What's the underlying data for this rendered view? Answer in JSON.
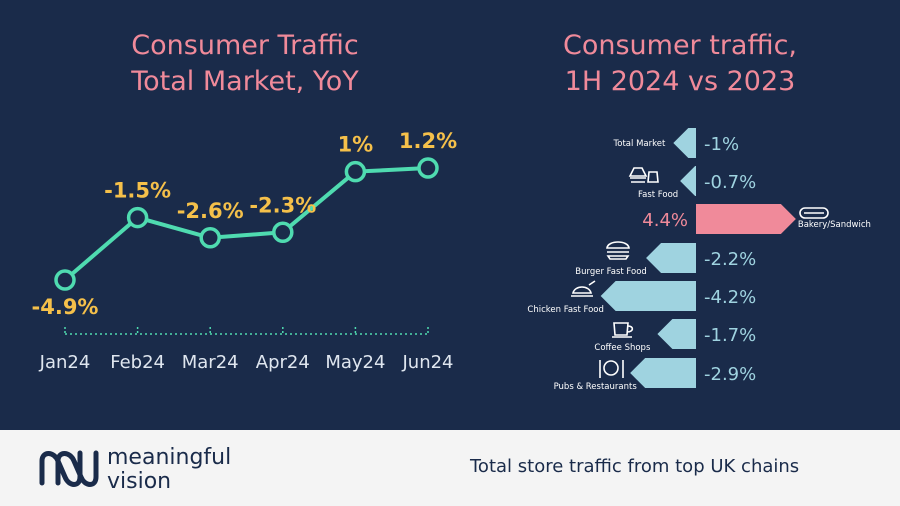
{
  "left_title_line1": "Consumer Traffic",
  "left_title_line2": "Total Market, YoY",
  "right_title_line1": "Consumer traffic,",
  "right_title_line2": "1H 2024 vs 2023",
  "footer": {
    "brand_line1": "meaningful",
    "brand_line2": "vision",
    "tagline": "Total store traffic from top UK chains"
  },
  "colors": {
    "background": "#1a2b4a",
    "title": "#f08a9a",
    "line": "#4fdbb0",
    "value_label": "#f5c04a",
    "axis_text": "#dfe6ef",
    "bar_negative": "#9fd3e0",
    "bar_positive": "#f08a9a",
    "footer_bg": "#f4f4f4",
    "footer_text": "#1a2b4a"
  },
  "chart_data": [
    {
      "type": "line",
      "title": "Consumer Traffic Total Market, YoY",
      "categories": [
        "Jan24",
        "Feb24",
        "Mar24",
        "Apr24",
        "May24",
        "Jun24"
      ],
      "values": [
        -4.9,
        -1.5,
        -2.6,
        -2.3,
        1.0,
        1.2
      ],
      "value_labels": [
        "-4.9%",
        "-1.5%",
        "-2.6%",
        "-2.3%",
        "1%",
        "1.2%"
      ],
      "ylim": [
        -5,
        2
      ],
      "grid": false
    },
    {
      "type": "bar",
      "orientation": "horizontal",
      "title": "Consumer traffic, 1H 2024 vs 2023",
      "categories": [
        "Total Market",
        "Fast Food",
        "Bakery/Sandwich",
        "Burger Fast Food",
        "Chicken Fast Food",
        "Coffee Shops",
        "Pubs & Restaurants"
      ],
      "values": [
        -1.0,
        -0.7,
        4.4,
        -2.2,
        -4.2,
        -1.7,
        -2.9
      ],
      "value_labels": [
        "-1%",
        "-0.7%",
        "4.4%",
        "-2.2%",
        "-4.2%",
        "-1.7%",
        "-2.9%"
      ],
      "icons": [
        "",
        "fast-food-icon",
        "sandwich-icon",
        "burger-icon",
        "chicken-icon",
        "coffee-icon",
        "cutlery-icon"
      ]
    }
  ]
}
